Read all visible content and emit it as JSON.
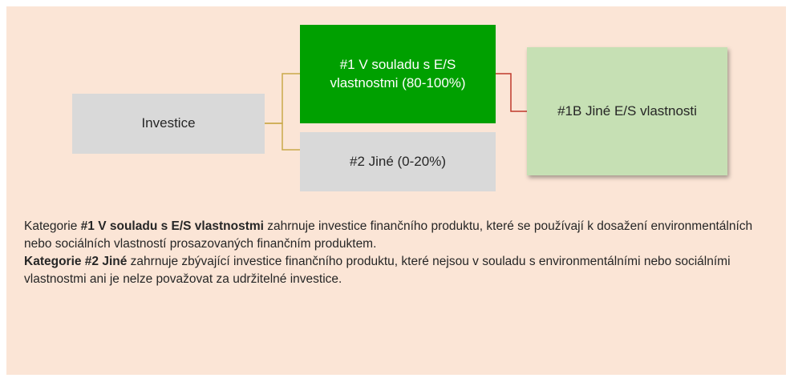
{
  "nodes": [
    {
      "lines": [
        "Investice"
      ]
    },
    {
      "lines": [
        "#1 V souladu s E/S",
        "vlastnostmi (80-100%)"
      ]
    },
    {
      "lines": [
        "#2 Jiné (0-20%)"
      ]
    },
    {
      "lines": [
        "#1B Jiné E/S vlastnosti"
      ]
    }
  ],
  "text": {
    "paragraphs": [
      {
        "parts": [
          {
            "text": "Kategorie "
          },
          {
            "text": "#1 V souladu s E/S vlastnostmi",
            "bold": true
          },
          {
            "text": " zahrnuje investice finančního produktu, které se používají k dosažení environmentálních nebo sociálních vlastností prosazovaných finančním produktem."
          }
        ]
      },
      {
        "parts": [
          {
            "text": "Kategorie #2 Jiné",
            "bold": true
          },
          {
            "text": " zahrnuje zbývající investice finančního produktu, které nejsou v souladu s environmentálními nebo sociálními vlastnostmi ani je nelze považovat za udržitelné investice."
          }
        ]
      }
    ]
  }
}
